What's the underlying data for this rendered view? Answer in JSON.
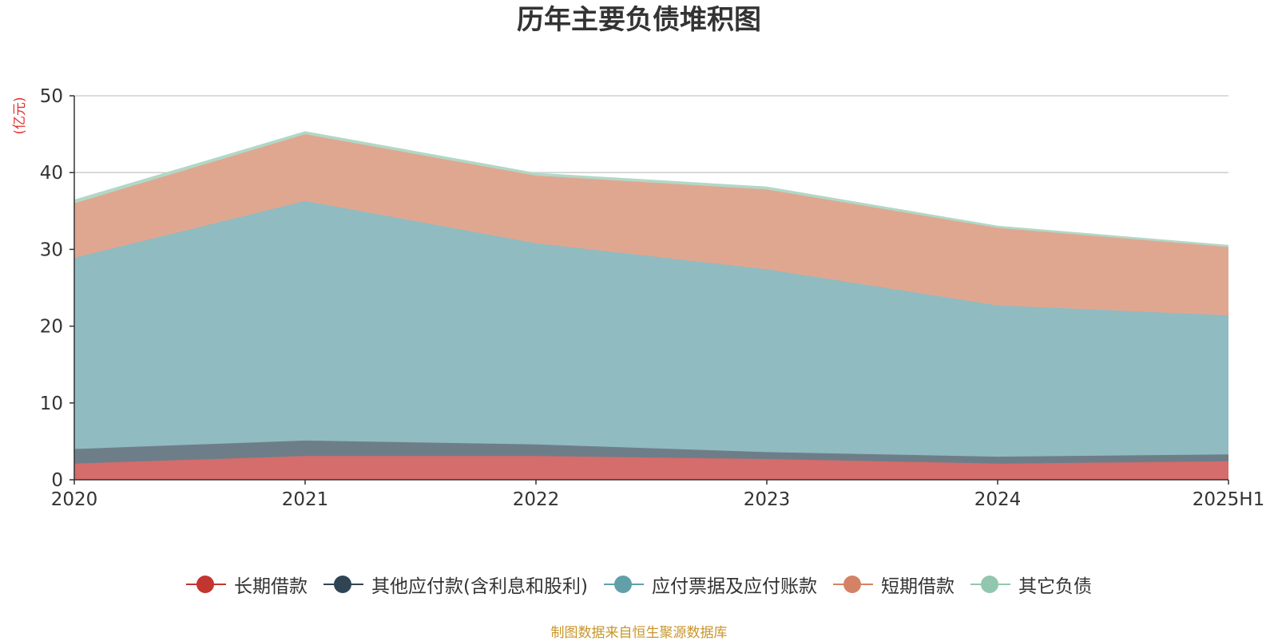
{
  "chart_data": {
    "type": "area",
    "stacked": true,
    "title": "历年主要负债堆积图",
    "ylabel": "(亿元)",
    "xlabel": "",
    "ylim": [
      0,
      50
    ],
    "yticks": [
      0,
      10,
      20,
      30,
      40,
      50
    ],
    "categories": [
      "2020",
      "2021",
      "2022",
      "2023",
      "2024",
      "2025H1"
    ],
    "series": [
      {
        "name": "长期借款",
        "color": "#c23531",
        "fill": "#d46d6b",
        "values": [
          2.1,
          3.1,
          3.1,
          2.7,
          2.1,
          2.4
        ]
      },
      {
        "name": "其他应付款(含利息和股利)",
        "color": "#2f4554",
        "fill": "#6e7e89",
        "values": [
          1.9,
          2.0,
          1.5,
          0.9,
          0.9,
          0.9
        ]
      },
      {
        "name": "应付票据及应付账款",
        "color": "#61a0a8",
        "fill": "#90bbc1",
        "values": [
          24.9,
          31.2,
          26.2,
          23.8,
          19.7,
          18.1
        ]
      },
      {
        "name": "短期借款",
        "color": "#d48265",
        "fill": "#e0a790",
        "values": [
          7.1,
          8.7,
          8.8,
          10.4,
          10.1,
          8.9
        ]
      },
      {
        "name": "其它负债",
        "color": "#91c7ae",
        "fill": "#b1d8c6",
        "values": [
          0.4,
          0.3,
          0.3,
          0.3,
          0.2,
          0.2
        ]
      }
    ],
    "legend_position": "bottom",
    "grid": true
  },
  "source_note": "制图数据来自恒生聚源数据库"
}
